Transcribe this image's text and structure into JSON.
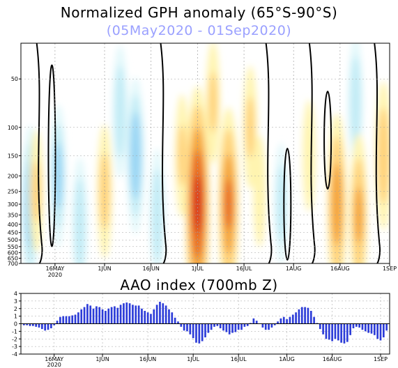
{
  "title": "Normalized GPH anomaly (65°S-90°S)",
  "subtitle": "(05May2020 - 01Sep2020)",
  "colors": {
    "pos1": "#fff4b0",
    "pos2": "#ffd27a",
    "pos3": "#f4a43a",
    "pos4": "#e86a24",
    "pos5": "#d8321a",
    "neg1": "#e2f8fb",
    "neg2": "#c2ecf6",
    "neg3": "#9ad6f4",
    "neg4": "#72bcec",
    "zero_contour": "#000000",
    "bar": "#2c3cd8"
  },
  "chart_data": [
    {
      "type": "heatmap",
      "title": "Normalized GPH anomaly (65°S-90°S)",
      "subtitle": "(05May2020 - 01Sep2020)",
      "x_range": [
        "2020-05-05",
        "2020-09-01"
      ],
      "x_ticks": [
        "16MAY",
        "1JUN",
        "16JUN",
        "1JUL",
        "16JUL",
        "1AUG",
        "16AUG",
        "1SEP"
      ],
      "x_tick_sublabel": "2020",
      "y_scale": "log-pressure",
      "y_unit": "mb",
      "y_ticks": [
        "50",
        "100",
        "150",
        "200",
        "250",
        "300",
        "350",
        "400",
        "450",
        "500",
        "550",
        "600",
        "650",
        "700"
      ],
      "grid": true,
      "features": [
        {
          "center_date": "2020-05-08",
          "pressure_mb": 300,
          "anomaly": -1.5
        },
        {
          "center_date": "2020-05-10",
          "pressure_mb": 250,
          "anomaly": 1.0
        },
        {
          "center_date": "2020-05-17",
          "pressure_mb": 200,
          "anomaly": -1.2
        },
        {
          "center_date": "2020-05-24",
          "pressure_mb": 400,
          "anomaly": -1.0
        },
        {
          "center_date": "2020-06-01",
          "pressure_mb": 250,
          "anomaly": 1.2
        },
        {
          "center_date": "2020-06-06",
          "pressure_mb": 80,
          "anomaly": -1.0
        },
        {
          "center_date": "2020-06-11",
          "pressure_mb": 150,
          "anomaly": -1.5
        },
        {
          "center_date": "2020-06-18",
          "pressure_mb": 350,
          "anomaly": -1.0
        },
        {
          "center_date": "2020-06-26",
          "pressure_mb": 150,
          "anomaly": 1.0
        },
        {
          "center_date": "2020-07-01",
          "pressure_mb": 300,
          "anomaly": 3.5
        },
        {
          "center_date": "2020-07-06",
          "pressure_mb": 70,
          "anomaly": 1.0
        },
        {
          "center_date": "2020-07-11",
          "pressure_mb": 300,
          "anomaly": 2.5
        },
        {
          "center_date": "2020-07-18",
          "pressure_mb": 100,
          "anomaly": 1.0
        },
        {
          "center_date": "2020-07-21",
          "pressure_mb": 250,
          "anomaly": 0.8
        },
        {
          "center_date": "2020-07-28",
          "pressure_mb": 300,
          "anomaly": -0.8
        },
        {
          "center_date": "2020-08-06",
          "pressure_mb": 150,
          "anomaly": 0.8
        },
        {
          "center_date": "2020-08-15",
          "pressure_mb": 300,
          "anomaly": 2.2
        },
        {
          "center_date": "2020-08-21",
          "pressure_mb": 70,
          "anomaly": -1.0
        },
        {
          "center_date": "2020-08-22",
          "pressure_mb": 350,
          "anomaly": 1.8
        },
        {
          "center_date": "2020-08-30",
          "pressure_mb": 150,
          "anomaly": 1.5
        }
      ]
    },
    {
      "type": "bar",
      "title": "AAO index (700mb Z)",
      "x_range": [
        "2020-05-05",
        "2020-09-01"
      ],
      "x_ticks": [
        "16MAY",
        "1JUN",
        "16JUN",
        "1JUL",
        "16JUL",
        "1AUG",
        "16AUG",
        "1SEP"
      ],
      "x_tick_sublabel": "2020",
      "y_ticks": [
        "4",
        "3",
        "2",
        "1",
        "0",
        "-1",
        "-2",
        "-3",
        "-4"
      ],
      "ylim": [
        -4,
        4
      ],
      "grid": true,
      "start_date": "2020-05-05",
      "values": [
        -0.2,
        -0.2,
        -0.3,
        -0.3,
        -0.4,
        -0.5,
        -0.7,
        -0.9,
        -0.8,
        -0.6,
        -0.2,
        0.4,
        0.9,
        1.0,
        1.0,
        1.0,
        1.1,
        1.2,
        1.5,
        1.9,
        2.2,
        2.6,
        2.4,
        2.0,
        2.3,
        2.2,
        1.9,
        1.7,
        2.0,
        2.2,
        2.3,
        2.1,
        2.5,
        2.7,
        2.8,
        2.7,
        2.5,
        2.4,
        2.4,
        2.0,
        1.7,
        1.5,
        1.3,
        1.9,
        2.5,
        2.9,
        2.7,
        2.4,
        1.9,
        1.5,
        0.8,
        0.3,
        -0.4,
        -0.9,
        -1.0,
        -1.4,
        -1.9,
        -2.5,
        -2.6,
        -2.3,
        -1.8,
        -1.2,
        -0.8,
        -0.4,
        -0.3,
        -0.6,
        -0.9,
        -1.1,
        -1.4,
        -1.2,
        -1.1,
        -0.8,
        -0.8,
        -0.4,
        -0.3,
        0.1,
        0.7,
        0.4,
        0.0,
        -0.5,
        -0.8,
        -0.8,
        -0.5,
        -0.2,
        0.3,
        0.7,
        0.9,
        0.6,
        0.9,
        1.2,
        1.5,
        1.9,
        2.2,
        2.2,
        2.1,
        1.7,
        0.9,
        0.1,
        -0.7,
        -1.4,
        -2.0,
        -2.1,
        -2.3,
        -2.0,
        -2.2,
        -2.5,
        -2.6,
        -2.4,
        -1.5,
        -0.6,
        -0.4,
        -0.5,
        -0.8,
        -1.0,
        -1.2,
        -1.3,
        -1.5,
        -2.0,
        -2.2,
        -1.8,
        -0.9
      ]
    }
  ]
}
